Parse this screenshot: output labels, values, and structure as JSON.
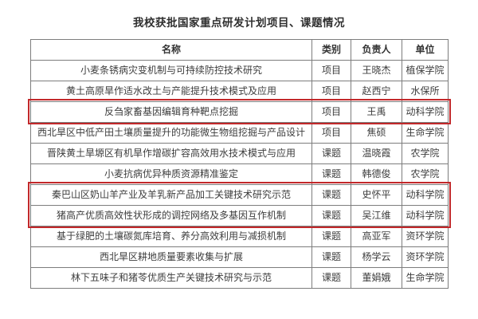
{
  "page": {
    "title": "我校获批国家重点研发计划项目、课题情况"
  },
  "table": {
    "headers": [
      "名称",
      "类别",
      "负责人",
      "单位"
    ],
    "rows": [
      {
        "name": "小麦条锈病灾变机制与可持续防控技术研究",
        "category": "项目",
        "leader": "王晓杰",
        "unit": "植保学院"
      },
      {
        "name": "黄土高原旱作适水改土与产能提升技术模式及应用",
        "category": "项目",
        "leader": "赵西宁",
        "unit": "水保所"
      },
      {
        "name": "反刍家畜基因编辑育种靶点挖掘",
        "category": "项目",
        "leader": "王禹",
        "unit": "动科学院"
      },
      {
        "name": "西北旱区中低产田土壤质量提升的功能微生物组挖掘与产品设计",
        "category": "项目",
        "leader": "焦硕",
        "unit": "生命学院"
      },
      {
        "name": "晋陕黄土旱塬区有机旱作增碳扩容高效用水技术模式与应用",
        "category": "课题",
        "leader": "温晓霞",
        "unit": "农学院"
      },
      {
        "name": "小麦抗病优异种质资源精准鉴定",
        "category": "课题",
        "leader": "韩德俊",
        "unit": "农学院"
      },
      {
        "name": "秦巴山区奶山羊产业及羊乳新产品加工关键技术研究示范",
        "category": "课题",
        "leader": "史怀平",
        "unit": "动科学院"
      },
      {
        "name": "猪高产优质高效性状形成的调控网络及多基因互作机制",
        "category": "课题",
        "leader": "吴江维",
        "unit": "动科学院"
      },
      {
        "name": "基于绿肥的土壤碳氮库培育、养分高效利用与减损机制",
        "category": "课题",
        "leader": "高亚军",
        "unit": "资环学院"
      },
      {
        "name": "西北旱区耕地质量要素收集与扩展",
        "category": "课题",
        "leader": "杨学云",
        "unit": "资环学院"
      },
      {
        "name": "林下五味子和猪苓优质生产关键技术研究与示范",
        "category": "课题",
        "leader": "董娟娥",
        "unit": "生命学院"
      }
    ],
    "highlight_groups": [
      [
        2,
        2
      ],
      [
        6,
        7
      ]
    ]
  },
  "colors": {
    "highlight_border": "#c2282a",
    "table_border": "#7d7d7d",
    "text": "#3d3d3d"
  }
}
